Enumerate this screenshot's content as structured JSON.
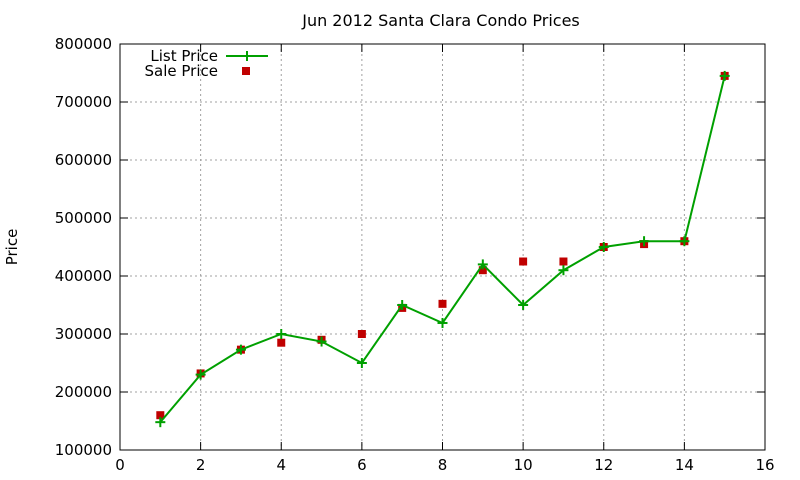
{
  "chart_data": {
    "type": "line",
    "title": "Jun 2012 Santa Clara Condo Prices",
    "xlabel": "",
    "ylabel": "Price",
    "xlim": [
      0,
      16
    ],
    "ylim": [
      100000,
      800000
    ],
    "x_ticks": [
      "0",
      "2",
      "4",
      "6",
      "8",
      "10",
      "12",
      "14",
      "16"
    ],
    "y_ticks": [
      "100000",
      "200000",
      "300000",
      "400000",
      "500000",
      "600000",
      "700000",
      "800000"
    ],
    "grid": true,
    "legend_position": "top-left",
    "series": [
      {
        "name": "List Price",
        "style": "line with plus markers",
        "color": "#00a000",
        "x": [
          1,
          2,
          3,
          4,
          5,
          6,
          7,
          8,
          9,
          10,
          11,
          12,
          13,
          14,
          15
        ],
        "y": [
          148000,
          230000,
          273000,
          300000,
          287000,
          250000,
          350000,
          319000,
          420000,
          350000,
          410000,
          450000,
          460000,
          460000,
          745000
        ]
      },
      {
        "name": "Sale Price",
        "style": "square markers",
        "color": "#c00000",
        "x": [
          1,
          2,
          3,
          4,
          5,
          6,
          7,
          8,
          9,
          10,
          11,
          12,
          13,
          14,
          15
        ],
        "y": [
          160000,
          232000,
          273000,
          285000,
          290000,
          300000,
          345000,
          352000,
          410000,
          425000,
          425000,
          450000,
          455000,
          460000,
          745000
        ]
      }
    ]
  }
}
